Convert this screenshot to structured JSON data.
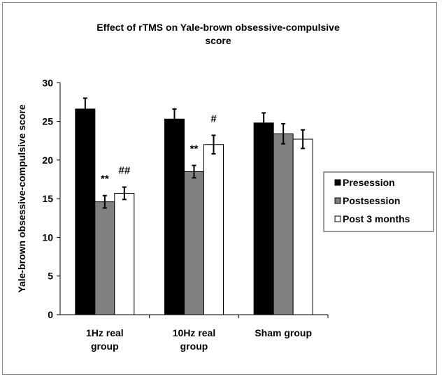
{
  "chart_data": {
    "type": "bar",
    "title": "Effect of rTMS on Yale-brown obsessive-compulsive score",
    "title_lines": [
      "Effect of rTMS on Yale-brown obsessive-compulsive",
      "score"
    ],
    "xlabel": "",
    "ylabel": "Yale-brown obsessive-compulsive score",
    "ylim": [
      0,
      30
    ],
    "yticks": [
      0,
      5,
      10,
      15,
      20,
      25,
      30
    ],
    "grid": false,
    "legend_placement": "right",
    "categories": [
      [
        "1Hz real",
        "group"
      ],
      [
        "10Hz real",
        "group"
      ],
      [
        "Sham group"
      ]
    ],
    "series": [
      {
        "name": "Presession",
        "color": "#000000",
        "values": [
          26.6,
          25.3,
          24.8
        ],
        "errors": [
          1.4,
          1.3,
          1.3
        ]
      },
      {
        "name": "Postsession",
        "color": "#808080",
        "values": [
          14.6,
          18.5,
          23.4
        ],
        "errors": [
          0.8,
          0.8,
          1.3
        ]
      },
      {
        "name": "Post 3 months",
        "color": "#ffffff",
        "values": [
          15.7,
          22.0,
          22.7
        ],
        "errors": [
          0.8,
          1.2,
          1.2
        ]
      }
    ],
    "annotations": [
      {
        "text": "**",
        "category": 0,
        "series": 1
      },
      {
        "text": "##",
        "category": 0,
        "series": 2
      },
      {
        "text": "**",
        "category": 1,
        "series": 1
      },
      {
        "text": "#",
        "category": 1,
        "series": 2
      }
    ]
  }
}
